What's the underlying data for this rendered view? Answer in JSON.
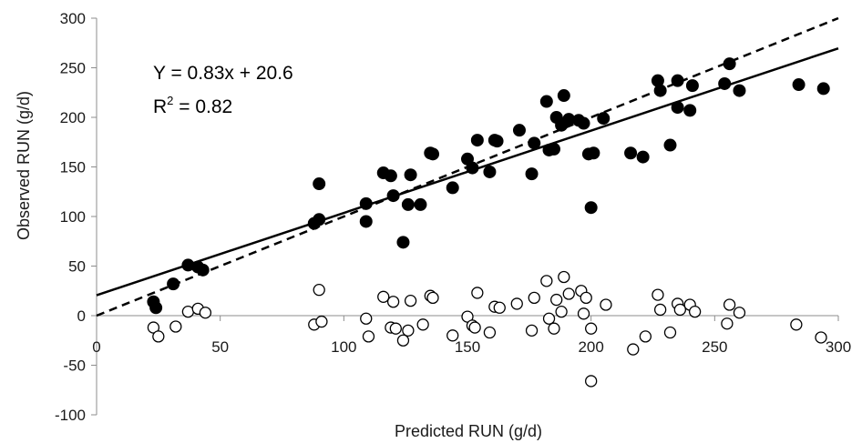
{
  "chart_data": {
    "type": "scatter",
    "title": "",
    "xlabel": "Predicted RUN (g/d)",
    "ylabel": "Observed RUN (g/d)",
    "xlim": [
      0,
      300
    ],
    "ylim": [
      -100,
      300
    ],
    "x_ticks": [
      0,
      50,
      100,
      150,
      200,
      250,
      300
    ],
    "y_ticks": [
      -100,
      -50,
      0,
      50,
      100,
      150,
      200,
      250,
      300
    ],
    "x_tick_labels": [
      "0",
      "50",
      "100",
      "150",
      "200",
      "250",
      "300"
    ],
    "y_tick_labels": [
      "-100",
      "-50",
      "0",
      "50",
      "100",
      "150",
      "200",
      "250",
      "300"
    ],
    "grid": false,
    "legend": "none",
    "series": [
      {
        "marker": "filled-circle",
        "color": "#000000",
        "points": [
          [
            23,
            14
          ],
          [
            24,
            8
          ],
          [
            31,
            32
          ],
          [
            37,
            51
          ],
          [
            41,
            49
          ],
          [
            43,
            46
          ],
          [
            88,
            93
          ],
          [
            90,
            97
          ],
          [
            90,
            133
          ],
          [
            109,
            113
          ],
          [
            109,
            95
          ],
          [
            116,
            144
          ],
          [
            119,
            141
          ],
          [
            120,
            121
          ],
          [
            124,
            74
          ],
          [
            126,
            112
          ],
          [
            127,
            142
          ],
          [
            131,
            112
          ],
          [
            135,
            164
          ],
          [
            136,
            163
          ],
          [
            144,
            129
          ],
          [
            150,
            158
          ],
          [
            152,
            149
          ],
          [
            154,
            177
          ],
          [
            159,
            145
          ],
          [
            161,
            177
          ],
          [
            162,
            176
          ],
          [
            171,
            187
          ],
          [
            176,
            143
          ],
          [
            177,
            174
          ],
          [
            182,
            216
          ],
          [
            183,
            167
          ],
          [
            185,
            168
          ],
          [
            186,
            200
          ],
          [
            188,
            192
          ],
          [
            189,
            222
          ],
          [
            191,
            198
          ],
          [
            195,
            197
          ],
          [
            197,
            194
          ],
          [
            199,
            163
          ],
          [
            200,
            109
          ],
          [
            201,
            164
          ],
          [
            205,
            199
          ],
          [
            216,
            164
          ],
          [
            221,
            160
          ],
          [
            227,
            237
          ],
          [
            228,
            227
          ],
          [
            232,
            172
          ],
          [
            235,
            237
          ],
          [
            235,
            210
          ],
          [
            240,
            207
          ],
          [
            241,
            232
          ],
          [
            254,
            234
          ],
          [
            256,
            254
          ],
          [
            260,
            227
          ],
          [
            284,
            233
          ],
          [
            294,
            229
          ]
        ]
      },
      {
        "marker": "open-circle",
        "color": "#000000",
        "points": [
          [
            23,
            -12
          ],
          [
            25,
            -21
          ],
          [
            32,
            -11
          ],
          [
            37,
            4
          ],
          [
            41,
            7
          ],
          [
            44,
            3
          ],
          [
            88,
            -9
          ],
          [
            90,
            26
          ],
          [
            91,
            -6
          ],
          [
            109,
            -3
          ],
          [
            110,
            -21
          ],
          [
            116,
            19
          ],
          [
            119,
            -12
          ],
          [
            120,
            14
          ],
          [
            121,
            -13
          ],
          [
            124,
            -25
          ],
          [
            126,
            -15
          ],
          [
            127,
            15
          ],
          [
            132,
            -9
          ],
          [
            135,
            20
          ],
          [
            136,
            18
          ],
          [
            144,
            -20
          ],
          [
            150,
            -1
          ],
          [
            152,
            -10
          ],
          [
            153,
            -12
          ],
          [
            154,
            23
          ],
          [
            159,
            -17
          ],
          [
            161,
            9
          ],
          [
            163,
            8
          ],
          [
            170,
            12
          ],
          [
            176,
            -15
          ],
          [
            177,
            18
          ],
          [
            182,
            35
          ],
          [
            183,
            -3
          ],
          [
            185,
            -13
          ],
          [
            186,
            16
          ],
          [
            188,
            4
          ],
          [
            189,
            39
          ],
          [
            191,
            22
          ],
          [
            196,
            25
          ],
          [
            197,
            2
          ],
          [
            198,
            18
          ],
          [
            200,
            -13
          ],
          [
            200,
            -66
          ],
          [
            206,
            11
          ],
          [
            217,
            -34
          ],
          [
            222,
            -21
          ],
          [
            227,
            21
          ],
          [
            228,
            6
          ],
          [
            232,
            -17
          ],
          [
            235,
            12
          ],
          [
            236,
            6
          ],
          [
            240,
            11
          ],
          [
            242,
            4
          ],
          [
            255,
            -8
          ],
          [
            256,
            11
          ],
          [
            260,
            3
          ],
          [
            283,
            -9
          ],
          [
            293,
            -22
          ]
        ]
      }
    ],
    "lines": [
      {
        "kind": "regression",
        "style": "solid",
        "slope": 0.83,
        "intercept": 20.6,
        "x_range": [
          0,
          300
        ]
      },
      {
        "kind": "1:1 line",
        "style": "dashed",
        "slope": 1,
        "intercept": 0,
        "x_range": [
          0,
          300
        ]
      }
    ],
    "annotations": {
      "equation": "Y = 0.83x + 20.6",
      "r2_base": "R",
      "r2_sup": "2",
      "r2_value": " = 0.82"
    }
  }
}
